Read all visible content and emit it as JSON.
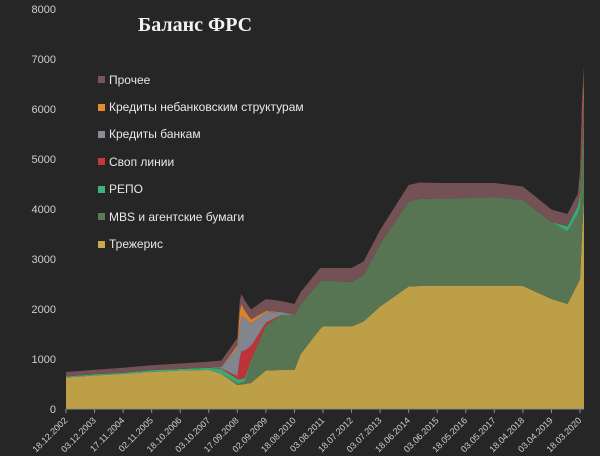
{
  "chart_data": {
    "type": "area",
    "stacked": true,
    "title": "Баланс ФРС",
    "xlabel": "",
    "ylabel": "",
    "ylim": [
      0,
      8000
    ],
    "yticks": [
      0,
      1000,
      2000,
      3000,
      4000,
      5000,
      6000,
      7000,
      8000
    ],
    "grid": false,
    "legend_position": "top-left",
    "x_tick_labels": [
      "18.12.2002",
      "03.12.2003",
      "17.11.2004",
      "02.11.2005",
      "18.10.2006",
      "03.10.2007",
      "17.09.2008",
      "02.09.2009",
      "18.08.2010",
      "03.08.2011",
      "18.07.2012",
      "03.07.2013",
      "18.06.2014",
      "03.06.2015",
      "18.05.2016",
      "03.05.2017",
      "18.04.2018",
      "03.04.2019",
      "18.03.2020"
    ],
    "x": [
      "18.12.2002",
      "03.12.2003",
      "17.11.2004",
      "02.11.2005",
      "18.10.2006",
      "03.10.2007",
      "06.03.2008",
      "17.09.2008",
      "15.10.2008",
      "05.11.2008",
      "17.12.2008",
      "04.03.2009",
      "02.09.2009",
      "10.03.2010",
      "18.08.2010",
      "03.11.2010",
      "29.06.2011",
      "03.08.2011",
      "18.07.2012",
      "12.12.2012",
      "03.07.2013",
      "18.06.2014",
      "29.10.2014",
      "03.06.2015",
      "18.05.2016",
      "03.05.2017",
      "18.04.2018",
      "03.04.2019",
      "16.10.2019",
      "19.02.2020",
      "18.03.2020",
      "15.04.2020",
      "06.05.2020"
    ],
    "series": [
      {
        "name": "Трежерис",
        "color": "#c9a94a",
        "values": [
          630,
          670,
          700,
          740,
          770,
          780,
          700,
          480,
          480,
          490,
          500,
          520,
          770,
          780,
          780,
          1100,
          1600,
          1650,
          1650,
          1750,
          2050,
          2450,
          2460,
          2460,
          2460,
          2460,
          2460,
          2200,
          2100,
          2500,
          2600,
          3600,
          4200
        ]
      },
      {
        "name": "MBS и агентские бумаги",
        "color": "#5b7b57",
        "values": [
          0,
          0,
          0,
          0,
          0,
          0,
          0,
          30,
          30,
          40,
          60,
          400,
          900,
          1100,
          1100,
          1000,
          950,
          920,
          890,
          930,
          1250,
          1700,
          1740,
          1750,
          1760,
          1780,
          1720,
          1540,
          1450,
          1400,
          1450,
          1450,
          1600
        ]
      },
      {
        "name": "РЕПО",
        "color": "#3bb57a",
        "values": [
          20,
          25,
          25,
          35,
          30,
          45,
          100,
          90,
          80,
          70,
          60,
          40,
          0,
          0,
          0,
          0,
          0,
          0,
          0,
          0,
          0,
          0,
          0,
          0,
          0,
          0,
          0,
          0,
          100,
          150,
          250,
          200,
          150
        ]
      },
      {
        "name": "Своп линии",
        "color": "#c8363a",
        "values": [
          0,
          0,
          0,
          0,
          0,
          0,
          10,
          60,
          400,
          550,
          550,
          300,
          60,
          0,
          0,
          0,
          0,
          0,
          0,
          0,
          0,
          0,
          0,
          0,
          0,
          0,
          0,
          0,
          0,
          0,
          100,
          450,
          350
        ]
      },
      {
        "name": "Кредиты банкам",
        "color": "#8a8c97",
        "values": [
          0,
          0,
          0,
          0,
          0,
          0,
          30,
          550,
          650,
          700,
          650,
          450,
          200,
          60,
          0,
          0,
          0,
          0,
          0,
          0,
          0,
          0,
          0,
          0,
          0,
          0,
          0,
          0,
          0,
          0,
          50,
          150,
          100
        ]
      },
      {
        "name": "Кредиты небанковским структурам",
        "color": "#e88a2c",
        "values": [
          0,
          0,
          0,
          0,
          0,
          0,
          0,
          60,
          300,
          250,
          150,
          80,
          30,
          0,
          0,
          0,
          0,
          0,
          0,
          0,
          0,
          0,
          0,
          0,
          0,
          0,
          0,
          0,
          0,
          0,
          30,
          150,
          150
        ]
      },
      {
        "name": "Прочее",
        "color": "#7a5558",
        "values": [
          90,
          90,
          100,
          100,
          110,
          120,
          130,
          150,
          200,
          200,
          200,
          200,
          240,
          220,
          220,
          240,
          270,
          250,
          280,
          270,
          280,
          330,
          330,
          310,
          300,
          280,
          270,
          250,
          250,
          250,
          300,
          300,
          300
        ]
      }
    ]
  }
}
